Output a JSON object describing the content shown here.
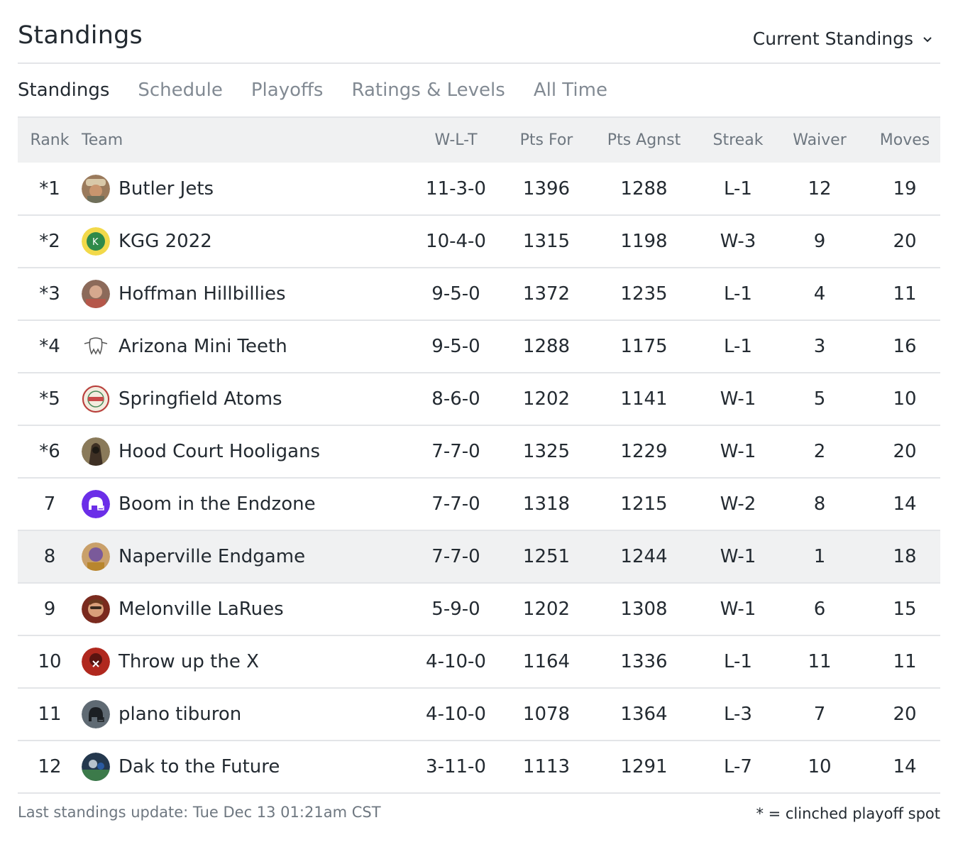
{
  "page": {
    "title": "Standings",
    "view_select": "Current Standings"
  },
  "tabs": [
    {
      "label": "Standings"
    },
    {
      "label": "Schedule"
    },
    {
      "label": "Playoffs"
    },
    {
      "label": "Ratings & Levels"
    },
    {
      "label": "All Time"
    }
  ],
  "table": {
    "columns": [
      "Rank",
      "Team",
      "W-L-T",
      "Pts For",
      "Pts Agnst",
      "Streak",
      "Waiver",
      "Moves"
    ],
    "rows": [
      {
        "rank": "*1",
        "team": "Butler Jets",
        "wlt": "11-3-0",
        "pts_for": "1396",
        "pts_agnst": "1288",
        "streak": "L-1",
        "waiver": "12",
        "moves": "19"
      },
      {
        "rank": "*2",
        "team": "KGG 2022",
        "wlt": "10-4-0",
        "pts_for": "1315",
        "pts_agnst": "1198",
        "streak": "W-3",
        "waiver": "9",
        "moves": "20"
      },
      {
        "rank": "*3",
        "team": "Hoffman Hillbillies",
        "wlt": "9-5-0",
        "pts_for": "1372",
        "pts_agnst": "1235",
        "streak": "L-1",
        "waiver": "4",
        "moves": "11"
      },
      {
        "rank": "*4",
        "team": "Arizona Mini Teeth",
        "wlt": "9-5-0",
        "pts_for": "1288",
        "pts_agnst": "1175",
        "streak": "L-1",
        "waiver": "3",
        "moves": "16"
      },
      {
        "rank": "*5",
        "team": "Springfield Atoms",
        "wlt": "8-6-0",
        "pts_for": "1202",
        "pts_agnst": "1141",
        "streak": "W-1",
        "waiver": "5",
        "moves": "10"
      },
      {
        "rank": "*6",
        "team": "Hood Court Hooligans",
        "wlt": "7-7-0",
        "pts_for": "1325",
        "pts_agnst": "1229",
        "streak": "W-1",
        "waiver": "2",
        "moves": "20"
      },
      {
        "rank": "7",
        "team": "Boom in the Endzone",
        "wlt": "7-7-0",
        "pts_for": "1318",
        "pts_agnst": "1215",
        "streak": "W-2",
        "waiver": "8",
        "moves": "14"
      },
      {
        "rank": "8",
        "team": "Naperville Endgame",
        "wlt": "7-7-0",
        "pts_for": "1251",
        "pts_agnst": "1244",
        "streak": "W-1",
        "waiver": "1",
        "moves": "18"
      },
      {
        "rank": "9",
        "team": "Melonville LaRues",
        "wlt": "5-9-0",
        "pts_for": "1202",
        "pts_agnst": "1308",
        "streak": "W-1",
        "waiver": "6",
        "moves": "15"
      },
      {
        "rank": "10",
        "team": "Throw up the X",
        "wlt": "4-10-0",
        "pts_for": "1164",
        "pts_agnst": "1336",
        "streak": "L-1",
        "waiver": "11",
        "moves": "11"
      },
      {
        "rank": "11",
        "team": "plano tiburon",
        "wlt": "4-10-0",
        "pts_for": "1078",
        "pts_agnst": "1364",
        "streak": "L-3",
        "waiver": "7",
        "moves": "20"
      },
      {
        "rank": "12",
        "team": "Dak to the Future",
        "wlt": "3-11-0",
        "pts_for": "1113",
        "pts_agnst": "1291",
        "streak": "L-7",
        "waiver": "10",
        "moves": "14"
      }
    ]
  },
  "footer": {
    "updated": "Last standings update: Tue Dec 13 01:21am CST",
    "legend": "* = clinched playoff spot"
  },
  "colors": {
    "text": "#232a31",
    "muted": "#828a93",
    "border": "#e3e5e8",
    "header_bg": "#f0f1f2"
  }
}
